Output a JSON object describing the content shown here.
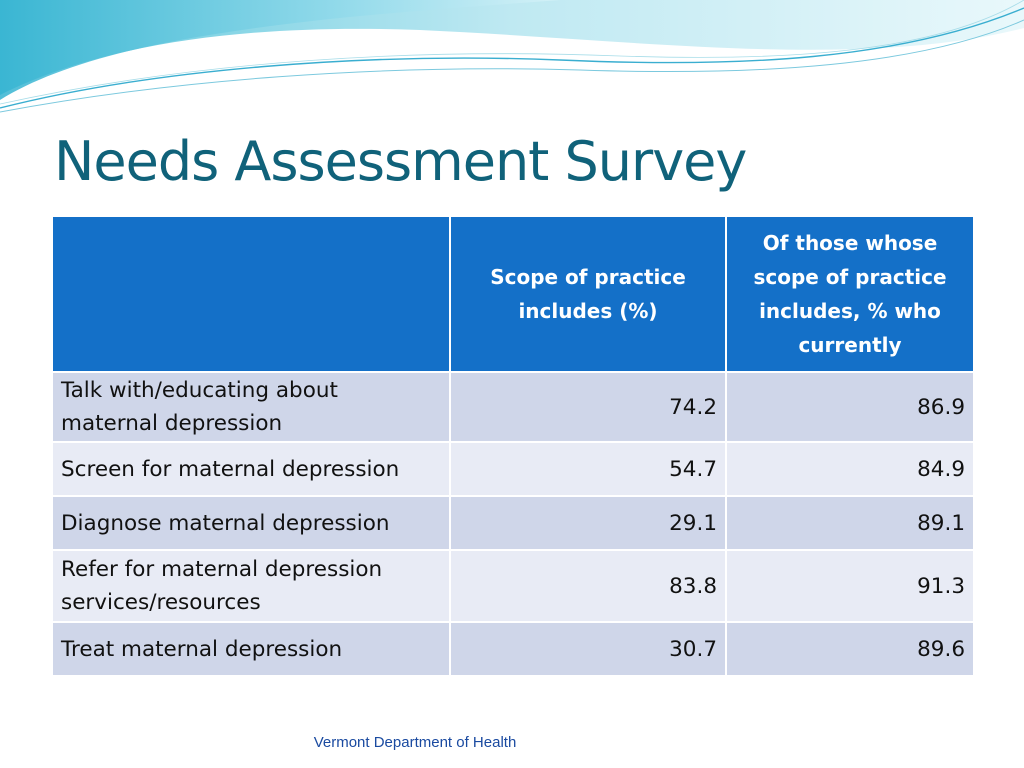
{
  "slide": {
    "title": "Needs Assessment Survey",
    "footer": "Vermont Department of Health"
  },
  "table": {
    "headers": [
      "",
      "Scope of practice includes (%)",
      "Of those whose scope of practice includes, % who currently"
    ],
    "rows": [
      {
        "label": "Talk with/educating about maternal depression",
        "scope": "74.2",
        "currently": "86.9"
      },
      {
        "label": "Screen for maternal depression",
        "scope": "54.7",
        "currently": "84.9"
      },
      {
        "label": "Diagnose maternal depression",
        "scope": "29.1",
        "currently": "89.1"
      },
      {
        "label": "Refer for maternal depression services/resources",
        "scope": "83.8",
        "currently": "91.3"
      },
      {
        "label": "Treat maternal depression",
        "scope": "30.7",
        "currently": "89.6"
      }
    ]
  },
  "colors": {
    "title": "#10627a",
    "header_bg": "#1470c8",
    "row_odd": "#cfd6e9",
    "row_even": "#e8ebf5",
    "footer": "#1a4aa0"
  }
}
